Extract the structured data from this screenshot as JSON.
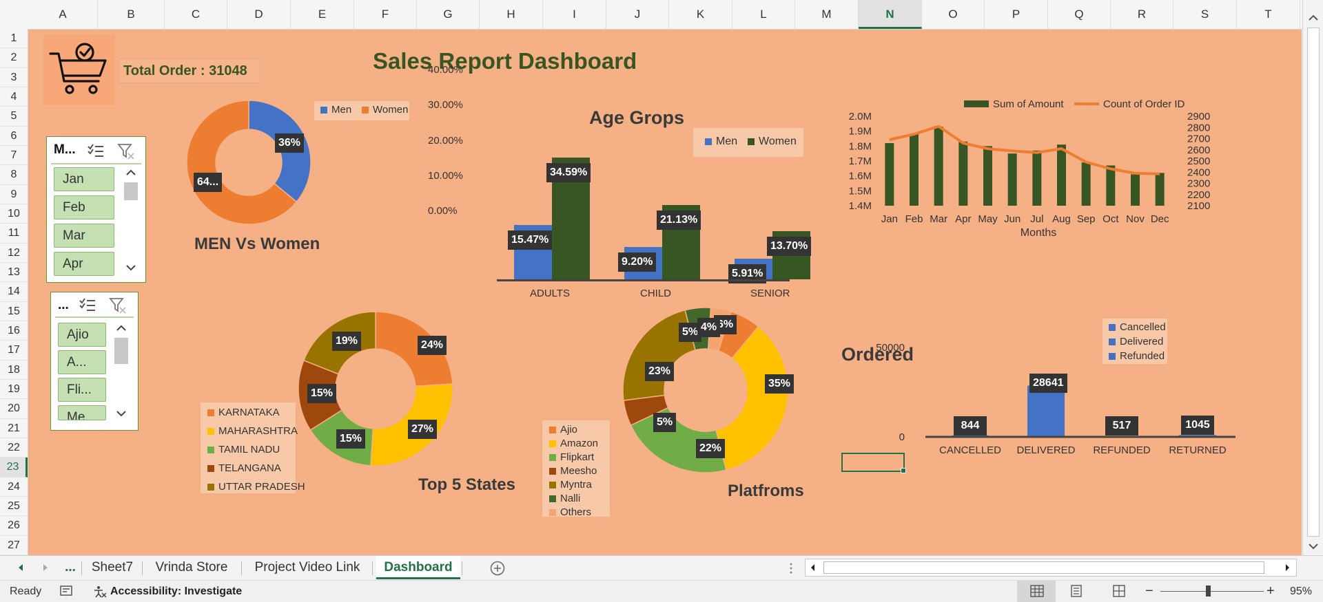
{
  "columns": [
    "A",
    "B",
    "C",
    "D",
    "E",
    "F",
    "G",
    "H",
    "I",
    "J",
    "K",
    "L",
    "M",
    "N",
    "O",
    "P",
    "Q",
    "R",
    "S",
    "T"
  ],
  "rows": [
    "1",
    "2",
    "3",
    "4",
    "5",
    "6",
    "7",
    "8",
    "9",
    "10",
    "11",
    "12",
    "13",
    "14",
    "15",
    "16",
    "17",
    "18",
    "19",
    "20",
    "21",
    "22",
    "23",
    "24",
    "25",
    "26",
    "27"
  ],
  "selected_column": "N",
  "selected_row": "23",
  "dashboard": {
    "title": "Sales Report Dashboard",
    "total_order": "Total Order : 31048",
    "cart_icon": "cart-check-icon"
  },
  "month_slicer": {
    "title": "M...",
    "items": [
      "Jan",
      "Feb",
      "Mar",
      "Apr"
    ]
  },
  "channel_slicer": {
    "title": "...",
    "items": [
      "Ajio",
      "A...",
      "Fli...",
      "Me..."
    ]
  },
  "men_women": {
    "title": "MEN Vs Women",
    "legend": [
      "Men",
      "Women"
    ],
    "colors": [
      "#4472c4",
      "#ed7d31"
    ],
    "values": [
      36,
      64
    ],
    "labels": [
      "36%",
      "64..."
    ]
  },
  "age_groups": {
    "title": "Age Grops",
    "legend": [
      "Men",
      "Women"
    ],
    "colors": [
      "#4472c4",
      "#375623"
    ],
    "categories": [
      "ADULTS",
      "CHILD",
      "SENIOR"
    ],
    "ytick_labels": [
      "40.00%",
      "30.00%",
      "20.00%",
      "10.00%",
      "0.00%"
    ],
    "men": [
      15.47,
      9.2,
      5.91
    ],
    "women": [
      34.59,
      21.13,
      13.7
    ],
    "men_labels": [
      "15.47%",
      "9.20%",
      "5.91%"
    ],
    "women_labels": [
      "34.59%",
      "21.13%",
      "13.70%"
    ]
  },
  "monthly": {
    "legend": [
      "Sum of Amount",
      "Count of Order ID"
    ],
    "colors": [
      "#375623",
      "#ed7d31"
    ],
    "categories": [
      "Jan",
      "Feb",
      "Mar",
      "Apr",
      "May",
      "Jun",
      "Jul",
      "Aug",
      "Sep",
      "Oct",
      "Nov",
      "Dec"
    ],
    "xlabel": "Months",
    "amount_ticks": [
      "2.0M",
      "1.9M",
      "1.8M",
      "1.7M",
      "1.6M",
      "1.5M",
      "1.4M"
    ],
    "orders_ticks": [
      "2900",
      "2800",
      "2700",
      "2600",
      "2500",
      "2400",
      "2300",
      "2200",
      "2100"
    ],
    "amount_millions": [
      1.82,
      1.88,
      1.93,
      1.83,
      1.8,
      1.75,
      1.77,
      1.81,
      1.69,
      1.67,
      1.61,
      1.62
    ],
    "order_count": [
      2690,
      2740,
      2810,
      2660,
      2610,
      2590,
      2575,
      2610,
      2490,
      2430,
      2390,
      2385
    ]
  },
  "states": {
    "title": "Top 5 States",
    "legend": [
      "KARNATAKA",
      "MAHARASHTRA",
      "TAMIL NADU",
      "TELANGANA",
      "UTTAR PRADESH"
    ],
    "colors": [
      "#ed7d31",
      "#ffc000",
      "#70ad47",
      "#9e480e",
      "#997300"
    ],
    "values": [
      24,
      27,
      15,
      15,
      19
    ],
    "labels": [
      "24%",
      "27%",
      "15%",
      "15%",
      "19%"
    ]
  },
  "platforms": {
    "title": "Platfroms",
    "legend": [
      "Ajio",
      "Amazon",
      "Flipkart",
      "Meesho",
      "Myntra",
      "Nalli",
      "Others"
    ],
    "colors": [
      "#ed7d31",
      "#ffc000",
      "#70ad47",
      "#9e480e",
      "#997300",
      "#43682b",
      "#f4a46e"
    ],
    "values": [
      6,
      35,
      22,
      5,
      23,
      5,
      4
    ],
    "labels": [
      "6%",
      "35%",
      "22%",
      "5%",
      "23%",
      "5%",
      "4%"
    ]
  },
  "ordered": {
    "title": "Ordered",
    "legend": [
      "Cancelled",
      "Delivered",
      "Refunded"
    ],
    "legend_colors": [
      "#4472c4",
      "#4472c4",
      "#4472c4"
    ],
    "categories": [
      "CANCELLED",
      "DELIVERED",
      "REFUNDED",
      "RETURNED"
    ],
    "values": [
      844,
      28641,
      517,
      1045
    ],
    "labels": [
      "844",
      "28641",
      "517",
      "1045"
    ],
    "ytick_labels": [
      "50000",
      "0"
    ]
  },
  "tabs": {
    "more": "...",
    "items": [
      "Sheet7",
      "Vrinda Store",
      "Project Video Link",
      "Dashboard"
    ],
    "active": "Dashboard"
  },
  "status": {
    "ready": "Ready",
    "accessibility": "Accessibility: Investigate",
    "zoom": "95%"
  }
}
